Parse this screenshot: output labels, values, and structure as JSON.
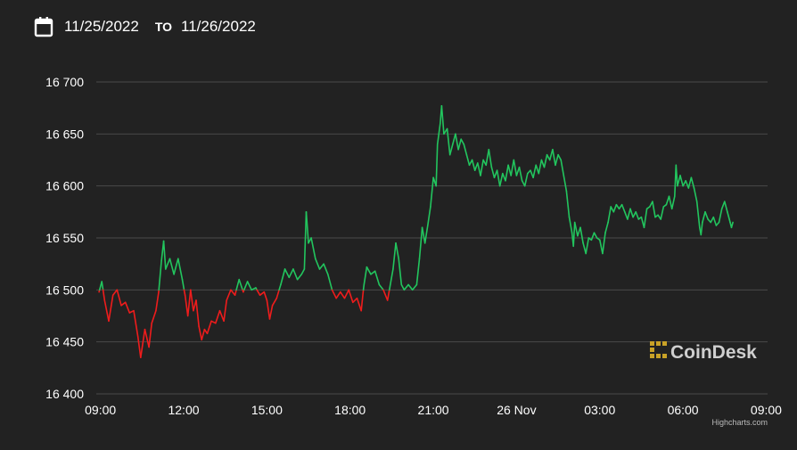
{
  "date_range": {
    "from": "11/25/2022",
    "to_label": "TO",
    "to": "11/26/2022",
    "icon": "calendar-icon"
  },
  "brand": {
    "name": "CoinDesk",
    "icon": "coindesk-logo-icon",
    "color": "#c9a227"
  },
  "credit": "Highcharts.com",
  "chart_data": {
    "type": "line",
    "title": "",
    "xlabel": "",
    "ylabel": "",
    "ylim": [
      16400,
      16700
    ],
    "y_ticks": [
      16400,
      16450,
      16500,
      16550,
      16600,
      16650,
      16700
    ],
    "y_tick_labels": [
      "16 400",
      "16 450",
      "16 500",
      "16 550",
      "16 600",
      "16 650",
      "16 700"
    ],
    "x_range_hours": [
      8.85,
      33.05
    ],
    "x_ticks": [
      {
        "h": 9,
        "label": "09:00"
      },
      {
        "h": 12,
        "label": "12:00"
      },
      {
        "h": 15,
        "label": "15:00"
      },
      {
        "h": 18,
        "label": "18:00"
      },
      {
        "h": 21,
        "label": "21:00"
      },
      {
        "h": 24,
        "label": "26 Nov"
      },
      {
        "h": 27,
        "label": "03:00"
      },
      {
        "h": 30,
        "label": "06:00"
      },
      {
        "h": 33,
        "label": "09:00"
      }
    ],
    "grid": true,
    "baseline": 16500,
    "up_color": "#22c55e",
    "down_color": "#ef1c1c",
    "series": [
      {
        "points": [
          [
            8.95,
            16498
          ],
          [
            9.05,
            16508
          ],
          [
            9.15,
            16490
          ],
          [
            9.3,
            16470
          ],
          [
            9.45,
            16495
          ],
          [
            9.6,
            16500
          ],
          [
            9.75,
            16485
          ],
          [
            9.9,
            16488
          ],
          [
            10.05,
            16478
          ],
          [
            10.2,
            16480
          ],
          [
            10.35,
            16455
          ],
          [
            10.45,
            16435
          ],
          [
            10.6,
            16462
          ],
          [
            10.75,
            16445
          ],
          [
            10.85,
            16468
          ],
          [
            11.0,
            16480
          ],
          [
            11.1,
            16498
          ],
          [
            11.2,
            16528
          ],
          [
            11.28,
            16547
          ],
          [
            11.35,
            16520
          ],
          [
            11.5,
            16530
          ],
          [
            11.65,
            16515
          ],
          [
            11.8,
            16530
          ],
          [
            11.95,
            16510
          ],
          [
            12.05,
            16495
          ],
          [
            12.15,
            16475
          ],
          [
            12.25,
            16500
          ],
          [
            12.35,
            16480
          ],
          [
            12.45,
            16490
          ],
          [
            12.55,
            16465
          ],
          [
            12.65,
            16452
          ],
          [
            12.75,
            16462
          ],
          [
            12.85,
            16458
          ],
          [
            13.0,
            16470
          ],
          [
            13.15,
            16468
          ],
          [
            13.3,
            16480
          ],
          [
            13.45,
            16470
          ],
          [
            13.55,
            16490
          ],
          [
            13.7,
            16500
          ],
          [
            13.85,
            16495
          ],
          [
            14.0,
            16510
          ],
          [
            14.15,
            16498
          ],
          [
            14.3,
            16508
          ],
          [
            14.45,
            16500
          ],
          [
            14.6,
            16502
          ],
          [
            14.75,
            16495
          ],
          [
            14.9,
            16498
          ],
          [
            15.0,
            16490
          ],
          [
            15.1,
            16472
          ],
          [
            15.2,
            16485
          ],
          [
            15.35,
            16492
          ],
          [
            15.5,
            16505
          ],
          [
            15.65,
            16520
          ],
          [
            15.8,
            16512
          ],
          [
            15.95,
            16520
          ],
          [
            16.1,
            16510
          ],
          [
            16.25,
            16515
          ],
          [
            16.35,
            16520
          ],
          [
            16.42,
            16575
          ],
          [
            16.5,
            16545
          ],
          [
            16.6,
            16550
          ],
          [
            16.75,
            16530
          ],
          [
            16.9,
            16520
          ],
          [
            17.05,
            16525
          ],
          [
            17.2,
            16515
          ],
          [
            17.35,
            16500
          ],
          [
            17.5,
            16492
          ],
          [
            17.65,
            16498
          ],
          [
            17.8,
            16492
          ],
          [
            17.95,
            16500
          ],
          [
            18.1,
            16488
          ],
          [
            18.25,
            16492
          ],
          [
            18.4,
            16480
          ],
          [
            18.5,
            16505
          ],
          [
            18.6,
            16522
          ],
          [
            18.75,
            16515
          ],
          [
            18.9,
            16518
          ],
          [
            19.05,
            16505
          ],
          [
            19.2,
            16500
          ],
          [
            19.35,
            16490
          ],
          [
            19.45,
            16505
          ],
          [
            19.55,
            16520
          ],
          [
            19.65,
            16545
          ],
          [
            19.75,
            16530
          ],
          [
            19.85,
            16505
          ],
          [
            19.95,
            16500
          ],
          [
            20.1,
            16505
          ],
          [
            20.25,
            16500
          ],
          [
            20.4,
            16505
          ],
          [
            20.5,
            16530
          ],
          [
            20.6,
            16560
          ],
          [
            20.7,
            16545
          ],
          [
            20.8,
            16562
          ],
          [
            20.9,
            16580
          ],
          [
            21.0,
            16608
          ],
          [
            21.1,
            16600
          ],
          [
            21.15,
            16640
          ],
          [
            21.25,
            16660
          ],
          [
            21.3,
            16677
          ],
          [
            21.38,
            16650
          ],
          [
            21.5,
            16655
          ],
          [
            21.6,
            16630
          ],
          [
            21.7,
            16640
          ],
          [
            21.8,
            16650
          ],
          [
            21.9,
            16635
          ],
          [
            22.0,
            16645
          ],
          [
            22.1,
            16640
          ],
          [
            22.2,
            16630
          ],
          [
            22.3,
            16620
          ],
          [
            22.4,
            16625
          ],
          [
            22.5,
            16615
          ],
          [
            22.6,
            16622
          ],
          [
            22.7,
            16610
          ],
          [
            22.8,
            16625
          ],
          [
            22.9,
            16620
          ],
          [
            23.0,
            16635
          ],
          [
            23.1,
            16618
          ],
          [
            23.2,
            16608
          ],
          [
            23.3,
            16615
          ],
          [
            23.4,
            16600
          ],
          [
            23.5,
            16612
          ],
          [
            23.6,
            16605
          ],
          [
            23.7,
            16620
          ],
          [
            23.8,
            16610
          ],
          [
            23.9,
            16625
          ],
          [
            24.0,
            16610
          ],
          [
            24.1,
            16618
          ],
          [
            24.2,
            16605
          ],
          [
            24.3,
            16600
          ],
          [
            24.4,
            16612
          ],
          [
            24.5,
            16615
          ],
          [
            24.6,
            16608
          ],
          [
            24.7,
            16620
          ],
          [
            24.8,
            16612
          ],
          [
            24.9,
            16625
          ],
          [
            25.0,
            16618
          ],
          [
            25.1,
            16630
          ],
          [
            25.2,
            16625
          ],
          [
            25.3,
            16635
          ],
          [
            25.4,
            16620
          ],
          [
            25.5,
            16630
          ],
          [
            25.6,
            16625
          ],
          [
            25.7,
            16610
          ],
          [
            25.8,
            16595
          ],
          [
            25.9,
            16570
          ],
          [
            26.0,
            16555
          ],
          [
            26.05,
            16542
          ],
          [
            26.1,
            16565
          ],
          [
            26.2,
            16552
          ],
          [
            26.3,
            16560
          ],
          [
            26.4,
            16545
          ],
          [
            26.5,
            16535
          ],
          [
            26.6,
            16550
          ],
          [
            26.7,
            16548
          ],
          [
            26.8,
            16555
          ],
          [
            26.9,
            16550
          ],
          [
            27.0,
            16548
          ],
          [
            27.1,
            16535
          ],
          [
            27.2,
            16555
          ],
          [
            27.3,
            16565
          ],
          [
            27.4,
            16580
          ],
          [
            27.5,
            16575
          ],
          [
            27.6,
            16582
          ],
          [
            27.7,
            16578
          ],
          [
            27.8,
            16582
          ],
          [
            27.9,
            16575
          ],
          [
            28.0,
            16568
          ],
          [
            28.1,
            16578
          ],
          [
            28.2,
            16570
          ],
          [
            28.3,
            16575
          ],
          [
            28.4,
            16568
          ],
          [
            28.5,
            16570
          ],
          [
            28.6,
            16560
          ],
          [
            28.7,
            16578
          ],
          [
            28.8,
            16580
          ],
          [
            28.9,
            16585
          ],
          [
            29.0,
            16570
          ],
          [
            29.1,
            16572
          ],
          [
            29.2,
            16568
          ],
          [
            29.3,
            16580
          ],
          [
            29.4,
            16582
          ],
          [
            29.5,
            16590
          ],
          [
            29.6,
            16578
          ],
          [
            29.7,
            16590
          ],
          [
            29.75,
            16620
          ],
          [
            29.8,
            16600
          ],
          [
            29.9,
            16610
          ],
          [
            30.0,
            16600
          ],
          [
            30.1,
            16605
          ],
          [
            30.2,
            16598
          ],
          [
            30.3,
            16608
          ],
          [
            30.4,
            16598
          ],
          [
            30.5,
            16585
          ],
          [
            30.6,
            16560
          ],
          [
            30.65,
            16553
          ],
          [
            30.7,
            16565
          ],
          [
            30.8,
            16575
          ],
          [
            30.9,
            16568
          ],
          [
            31.0,
            16565
          ],
          [
            31.1,
            16570
          ],
          [
            31.2,
            16562
          ],
          [
            31.3,
            16565
          ],
          [
            31.4,
            16578
          ],
          [
            31.5,
            16585
          ],
          [
            31.6,
            16575
          ],
          [
            31.7,
            16565
          ],
          [
            31.75,
            16560
          ],
          [
            31.8,
            16565
          ]
        ]
      }
    ]
  }
}
